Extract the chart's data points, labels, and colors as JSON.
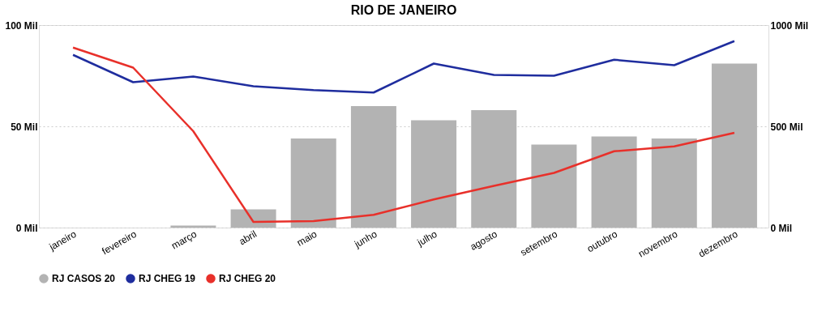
{
  "chart_data": {
    "type": "bar",
    "title": "RIO DE JANEIRO",
    "categories": [
      "janeiro",
      "fevereiro",
      "março",
      "abril",
      "maio",
      "junho",
      "julho",
      "agosto",
      "setembro",
      "outubro",
      "novembro",
      "dezembro"
    ],
    "series": [
      {
        "name": "RJ CASOS 20",
        "color": "#b3b3b3",
        "values": [
          null,
          null,
          1,
          9,
          44,
          60,
          53,
          58,
          41,
          45,
          44,
          81
        ]
      },
      {
        "name": "RJ CHEG 19",
        "type": "line",
        "axis": "y2",
        "color": "#1f2d9e",
        "values": [
          853,
          718,
          746,
          698,
          679,
          667,
          810,
          754,
          750,
          829,
          802,
          921
        ]
      },
      {
        "name": "RJ CHEG 20",
        "type": "line",
        "axis": "y2",
        "color": "#e8302a",
        "values": [
          889,
          790,
          476,
          28,
          32,
          63,
          139,
          206,
          270,
          377,
          401,
          468
        ]
      }
    ],
    "ylim": [
      0,
      100
    ],
    "yticks": [
      {
        "value": 0,
        "label": "0 Mil"
      },
      {
        "value": 50,
        "label": "50 Mil"
      },
      {
        "value": 100,
        "label": "100 Mil"
      }
    ],
    "y2lim": [
      0,
      1000
    ],
    "y2ticks": [
      {
        "value": 0,
        "label": "0 Mil"
      },
      {
        "value": 500,
        "label": "500 Mil"
      },
      {
        "value": 1000,
        "label": "1000 Mil"
      }
    ],
    "grid": "y",
    "legend": "bottom",
    "marker": "none",
    "line_style": "solid"
  }
}
